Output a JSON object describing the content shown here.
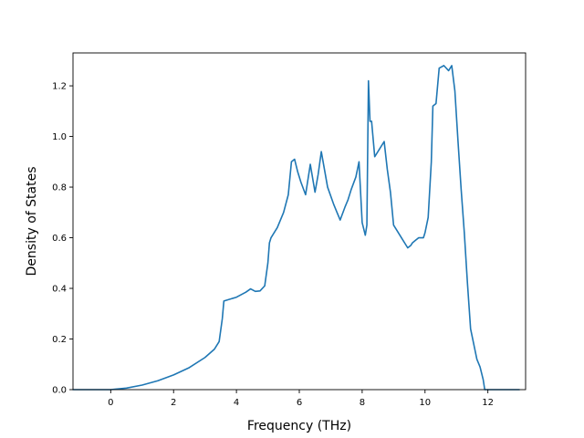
{
  "chart_data": {
    "type": "line",
    "xlabel": "Frequency (THz)",
    "ylabel": "Density of States",
    "xlim": [
      -1.2,
      13.2
    ],
    "ylim": [
      0.0,
      1.33
    ],
    "xticks": [
      0,
      2,
      4,
      6,
      8,
      10,
      12
    ],
    "yticks": [
      0.0,
      0.2,
      0.4,
      0.6,
      0.8,
      1.0,
      1.2
    ],
    "xtick_labels": [
      "0",
      "2",
      "4",
      "6",
      "8",
      "10",
      "12"
    ],
    "ytick_labels": [
      "0.0",
      "0.2",
      "0.4",
      "0.6",
      "0.8",
      "1.0",
      "1.2"
    ],
    "grid": false,
    "line_color": "#1f77b4",
    "series": [
      {
        "x": [
          -1.2,
          0.0,
          0.5,
          1.0,
          1.5,
          2.0,
          2.5,
          3.0,
          3.3,
          3.45,
          3.55,
          3.6,
          4.0,
          4.3,
          4.45,
          4.6,
          4.75,
          4.9,
          5.0,
          5.05,
          5.1,
          5.3,
          5.5,
          5.65,
          5.75,
          5.85,
          5.95,
          6.05,
          6.2,
          6.35,
          6.5,
          6.6,
          6.7,
          6.9,
          7.1,
          7.2,
          7.3,
          7.45,
          7.55,
          7.65,
          7.8,
          7.9,
          8.0,
          8.1,
          8.15,
          8.2,
          8.25,
          8.3,
          8.4,
          8.55,
          8.7,
          8.8,
          8.9,
          9.0,
          9.1,
          9.25,
          9.4,
          9.45,
          9.55,
          9.6,
          9.7,
          9.8,
          9.95,
          10.0,
          10.1,
          10.2,
          10.25,
          10.35,
          10.45,
          10.6,
          10.75,
          10.85,
          10.95,
          11.05,
          11.15,
          11.25,
          11.35,
          11.45,
          11.55,
          11.65,
          11.75,
          11.85,
          11.9,
          12.0,
          13.0
        ],
        "y": [
          0.0,
          0.0,
          0.006,
          0.018,
          0.035,
          0.058,
          0.087,
          0.127,
          0.16,
          0.19,
          0.28,
          0.35,
          0.365,
          0.385,
          0.398,
          0.388,
          0.39,
          0.41,
          0.5,
          0.58,
          0.6,
          0.64,
          0.7,
          0.77,
          0.9,
          0.91,
          0.86,
          0.82,
          0.77,
          0.89,
          0.78,
          0.85,
          0.94,
          0.8,
          0.73,
          0.7,
          0.67,
          0.72,
          0.75,
          0.79,
          0.84,
          0.9,
          0.66,
          0.61,
          0.65,
          1.22,
          1.06,
          1.06,
          0.92,
          0.95,
          0.98,
          0.87,
          0.78,
          0.65,
          0.63,
          0.6,
          0.57,
          0.56,
          0.57,
          0.58,
          0.59,
          0.6,
          0.6,
          0.62,
          0.68,
          0.9,
          1.12,
          1.13,
          1.27,
          1.28,
          1.26,
          1.28,
          1.18,
          0.98,
          0.79,
          0.62,
          0.42,
          0.24,
          0.18,
          0.12,
          0.09,
          0.04,
          0.0,
          0.0,
          0.0
        ]
      }
    ]
  }
}
